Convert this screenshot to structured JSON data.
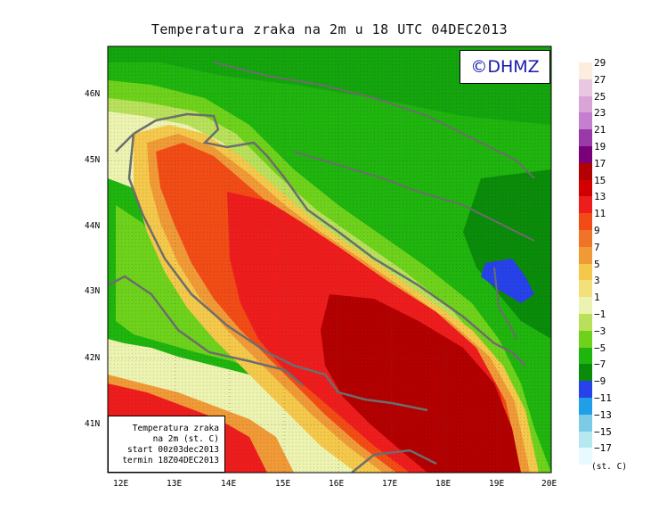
{
  "title": "Temperatura zraka na 2m u 18 UTC 04DEC2013",
  "logo": "©DHMZ",
  "info_box": {
    "line1": "Temperatura zraka",
    "line2": "na 2m (st. C)",
    "line3": "start 00z03dec2013",
    "line4": "termin 18Z04DEC2013"
  },
  "lat_labels": [
    "46N",
    "45N",
    "44N",
    "43N",
    "42N",
    "41N"
  ],
  "lon_labels": [
    "12E",
    "13E",
    "14E",
    "15E",
    "16E",
    "17E",
    "18E",
    "19E",
    "20E"
  ],
  "legend": {
    "unit": "(st. C)",
    "labels": [
      "29",
      "27",
      "25",
      "23",
      "21",
      "19",
      "17",
      "15",
      "13",
      "11",
      "9",
      "7",
      "5",
      "3",
      "1",
      "−1",
      "−3",
      "−5",
      "−7",
      "−9",
      "−11",
      "−13",
      "−15",
      "−17"
    ],
    "colors": [
      "#fbeede",
      "#e8c7e0",
      "#d9a5d6",
      "#c47fcf",
      "#9a3aa8",
      "#7a0079",
      "#b30000",
      "#d20000",
      "#ee1d1d",
      "#f24c16",
      "#f07428",
      "#f09a37",
      "#f4c84a",
      "#f4e07a",
      "#ecf2b0",
      "#b8e05a",
      "#6ed21c",
      "#1fb40e",
      "#0a8b0a",
      "#2642e8",
      "#1e9fe6",
      "#7ccbe6",
      "#b6e8f0",
      "#e6faff"
    ]
  }
}
